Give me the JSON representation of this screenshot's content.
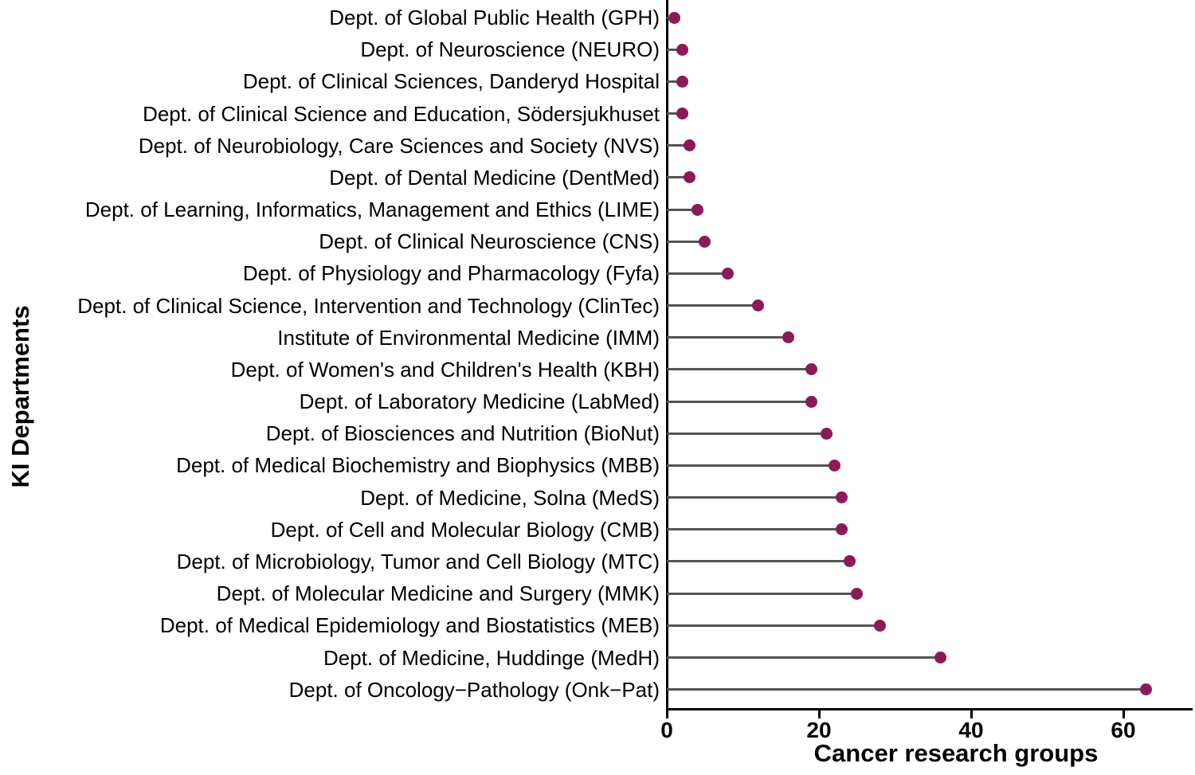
{
  "chart_data": {
    "type": "lollipop",
    "orientation": "horizontal",
    "title": "",
    "xlabel": "Cancer research groups",
    "ylabel": "KI Departments",
    "xlim": [
      0,
      69
    ],
    "xticks": [
      0,
      20,
      40,
      60
    ],
    "grid": false,
    "legend": "none",
    "point_color": "#8B1A55",
    "stem_color": "#545454",
    "axis_color": "#000000",
    "categories": [
      "Dept. of Global Public Health (GPH)",
      "Dept. of Neuroscience (NEURO)",
      "Dept. of Clinical Sciences, Danderyd Hospital",
      "Dept. of Clinical Science and Education, Södersjukhuset",
      "Dept. of Neurobiology, Care Sciences and Society (NVS)",
      "Dept. of Dental Medicine (DentMed)",
      "Dept. of Learning, Informatics, Management and Ethics (LIME)",
      "Dept. of Clinical Neuroscience (CNS)",
      "Dept. of Physiology and Pharmacology (Fyfa)",
      "Dept. of Clinical Science, Intervention and Technology (ClinTec)",
      "Institute of Environmental Medicine (IMM)",
      "Dept. of Women's and Children's Health (KBH)",
      "Dept. of Laboratory Medicine (LabMed)",
      "Dept. of Biosciences and Nutrition (BioNut)",
      "Dept. of Medical Biochemistry and Biophysics (MBB)",
      "Dept. of Medicine, Solna (MedS)",
      "Dept. of Cell and Molecular Biology (CMB)",
      "Dept. of Microbiology, Tumor and Cell Biology (MTC)",
      "Dept. of Molecular Medicine and Surgery (MMK)",
      "Dept. of Medical Epidemiology and Biostatistics (MEB)",
      "Dept. of Medicine, Huddinge (MedH)",
      "Dept. of Oncology−Pathology (Onk−Pat)"
    ],
    "values": [
      1,
      2,
      2,
      2,
      3,
      3,
      4,
      5,
      8,
      12,
      16,
      19,
      19,
      21,
      22,
      23,
      23,
      24,
      25,
      28,
      36,
      63
    ]
  }
}
